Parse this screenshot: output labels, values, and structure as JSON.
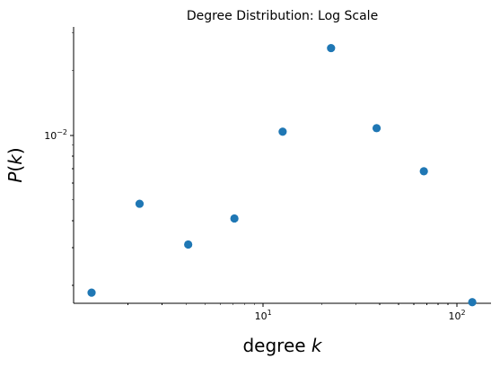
{
  "chart_data": {
    "type": "scatter",
    "title": "Degree Distribution: Log Scale",
    "xlabel": {
      "text": "degree ",
      "var": "k"
    },
    "ylabel": {
      "text": "P(",
      "var": "k",
      "close": ")"
    },
    "x_scale": "log",
    "y_scale": "log",
    "xlim": [
      1.05,
      150
    ],
    "ylim": [
      0.00165,
      0.032
    ],
    "x_ticks": [
      {
        "value": 10,
        "base": "10",
        "exp": "1"
      },
      {
        "value": 100,
        "base": "10",
        "exp": "2"
      }
    ],
    "y_ticks": [
      {
        "value": 0.01,
        "base": "10",
        "exp": "−2"
      }
    ],
    "grid": false,
    "marker_color": "#1f77b4",
    "points": [
      {
        "x": 1.3,
        "y": 0.00185
      },
      {
        "x": 2.3,
        "y": 0.0048
      },
      {
        "x": 4.1,
        "y": 0.0031
      },
      {
        "x": 7.1,
        "y": 0.0041
      },
      {
        "x": 12.6,
        "y": 0.0104
      },
      {
        "x": 22.4,
        "y": 0.0255
      },
      {
        "x": 38.5,
        "y": 0.0108
      },
      {
        "x": 67.5,
        "y": 0.0068
      },
      {
        "x": 120,
        "y": 0.00167
      }
    ]
  }
}
